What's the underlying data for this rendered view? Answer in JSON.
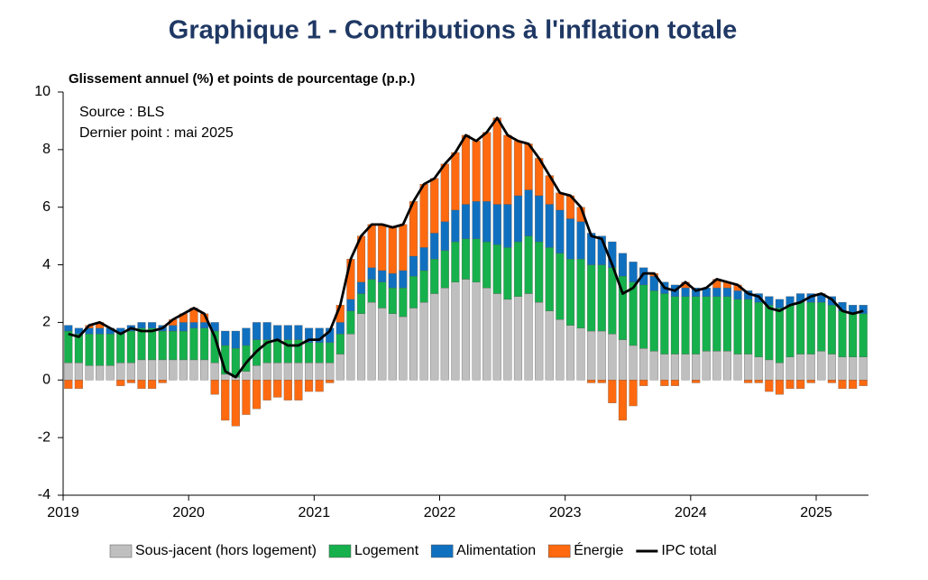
{
  "chart_data": {
    "type": "stacked-bar",
    "title": "Graphique 1 - Contributions à l'inflation totale",
    "subtitle": "Glissement annuel (%) et points de pourcentage (p.p.)",
    "annotations": [
      "Source : BLS",
      "Dernier point : mai 2025"
    ],
    "categories": [
      "2019",
      null,
      null,
      null,
      null,
      null,
      null,
      null,
      null,
      null,
      null,
      null,
      "2020",
      null,
      null,
      null,
      null,
      null,
      null,
      null,
      null,
      null,
      null,
      null,
      "2021",
      null,
      null,
      null,
      null,
      null,
      null,
      null,
      null,
      null,
      null,
      null,
      "2022",
      null,
      null,
      null,
      null,
      null,
      null,
      null,
      null,
      null,
      null,
      null,
      "2023",
      null,
      null,
      null,
      null,
      null,
      null,
      null,
      null,
      null,
      null,
      null,
      "2024",
      null,
      null,
      null,
      null,
      null,
      null,
      null,
      null,
      null,
      null,
      null,
      "2025",
      null,
      null,
      null,
      null
    ],
    "ylim": [
      -4,
      10
    ],
    "yticks": [
      -4,
      -2,
      0,
      2,
      4,
      6,
      8,
      10
    ],
    "series": [
      {
        "name": "Sous-jacent (hors logement)",
        "color": "#bfbfbf",
        "values": [
          0.6,
          0.6,
          0.5,
          0.5,
          0.5,
          0.6,
          0.6,
          0.7,
          0.7,
          0.7,
          0.7,
          0.7,
          0.7,
          0.7,
          0.6,
          0.2,
          0.1,
          0.3,
          0.5,
          0.6,
          0.6,
          0.6,
          0.6,
          0.6,
          0.6,
          0.6,
          0.9,
          1.6,
          2.3,
          2.7,
          2.5,
          2.3,
          2.2,
          2.5,
          2.7,
          3.0,
          3.2,
          3.4,
          3.5,
          3.4,
          3.2,
          3.0,
          2.8,
          2.9,
          3.0,
          2.7,
          2.4,
          2.1,
          1.9,
          1.8,
          1.7,
          1.7,
          1.6,
          1.4,
          1.2,
          1.1,
          1.0,
          0.9,
          0.9,
          0.9,
          0.9,
          1.0,
          1.0,
          1.0,
          0.9,
          0.9,
          0.8,
          0.7,
          0.6,
          0.8,
          0.9,
          0.9,
          1.0,
          0.9,
          0.8,
          0.8,
          0.8
        ]
      },
      {
        "name": "Logement",
        "color": "#16b04c",
        "values": [
          1.1,
          1.0,
          1.1,
          1.1,
          1.1,
          1.0,
          1.1,
          1.1,
          1.1,
          1.0,
          1.0,
          1.0,
          1.1,
          1.1,
          1.1,
          1.0,
          1.0,
          0.9,
          0.9,
          0.8,
          0.8,
          0.8,
          0.8,
          0.7,
          0.7,
          0.7,
          0.7,
          0.8,
          0.7,
          0.8,
          0.9,
          0.9,
          1.0,
          1.1,
          1.1,
          1.2,
          1.3,
          1.4,
          1.4,
          1.5,
          1.6,
          1.7,
          1.8,
          1.9,
          2.0,
          2.1,
          2.2,
          2.3,
          2.3,
          2.4,
          2.3,
          2.3,
          2.3,
          2.2,
          2.2,
          2.2,
          2.1,
          2.1,
          2.0,
          2.0,
          2.0,
          1.9,
          1.9,
          1.9,
          1.9,
          1.9,
          1.9,
          1.9,
          1.9,
          1.8,
          1.8,
          1.8,
          1.7,
          1.7,
          1.6,
          1.5,
          1.5
        ]
      },
      {
        "name": "Alimentation",
        "color": "#1070c0",
        "values": [
          0.2,
          0.2,
          0.2,
          0.2,
          0.2,
          0.2,
          0.2,
          0.2,
          0.2,
          0.2,
          0.2,
          0.3,
          0.2,
          0.2,
          0.3,
          0.5,
          0.6,
          0.6,
          0.6,
          0.6,
          0.5,
          0.5,
          0.5,
          0.5,
          0.5,
          0.5,
          0.4,
          0.4,
          0.4,
          0.4,
          0.4,
          0.5,
          0.6,
          0.7,
          0.8,
          0.9,
          1.0,
          1.1,
          1.2,
          1.3,
          1.4,
          1.4,
          1.5,
          1.6,
          1.6,
          1.6,
          1.5,
          1.5,
          1.4,
          1.3,
          1.1,
          1.0,
          0.9,
          0.8,
          0.7,
          0.6,
          0.5,
          0.4,
          0.4,
          0.3,
          0.3,
          0.3,
          0.3,
          0.3,
          0.3,
          0.3,
          0.3,
          0.3,
          0.3,
          0.3,
          0.3,
          0.3,
          0.3,
          0.3,
          0.3,
          0.3,
          0.3
        ]
      },
      {
        "name": "Énergie",
        "color": "#ff6a10",
        "values": [
          -0.3,
          -0.3,
          0.1,
          0.2,
          0.0,
          -0.2,
          -0.1,
          -0.3,
          -0.3,
          -0.1,
          0.2,
          0.3,
          0.5,
          0.3,
          -0.5,
          -1.4,
          -1.6,
          -1.2,
          -1.0,
          -0.7,
          -0.6,
          -0.7,
          -0.7,
          -0.4,
          -0.4,
          -0.1,
          0.6,
          1.4,
          1.6,
          1.5,
          1.6,
          1.6,
          1.6,
          1.9,
          2.2,
          1.9,
          2.0,
          2.0,
          2.4,
          2.1,
          2.4,
          3.0,
          2.4,
          1.9,
          1.6,
          1.3,
          1.0,
          0.6,
          0.8,
          0.5,
          -0.1,
          -0.1,
          -0.8,
          -1.4,
          -0.9,
          -0.2,
          0.1,
          -0.2,
          -0.2,
          0.2,
          -0.1,
          0.0,
          0.3,
          0.2,
          0.2,
          -0.1,
          -0.1,
          -0.4,
          -0.5,
          -0.3,
          -0.3,
          -0.1,
          0.0,
          -0.1,
          -0.3,
          -0.3,
          -0.2
        ]
      }
    ],
    "line": {
      "name": "IPC total",
      "color": "#000000",
      "values": [
        1.6,
        1.5,
        1.9,
        2.0,
        1.8,
        1.6,
        1.8,
        1.7,
        1.7,
        1.8,
        2.1,
        2.3,
        2.5,
        2.3,
        1.5,
        0.3,
        0.1,
        0.6,
        1.0,
        1.3,
        1.4,
        1.2,
        1.2,
        1.4,
        1.4,
        1.7,
        2.6,
        4.2,
        5.0,
        5.4,
        5.4,
        5.3,
        5.4,
        6.2,
        6.8,
        7.0,
        7.5,
        7.9,
        8.5,
        8.3,
        8.6,
        9.1,
        8.5,
        8.3,
        8.2,
        7.7,
        7.1,
        6.5,
        6.4,
        6.0,
        5.0,
        4.9,
        4.0,
        3.0,
        3.2,
        3.7,
        3.7,
        3.2,
        3.1,
        3.4,
        3.1,
        3.2,
        3.5,
        3.4,
        3.3,
        3.0,
        2.9,
        2.5,
        2.4,
        2.6,
        2.7,
        2.9,
        3.0,
        2.8,
        2.4,
        2.3,
        2.4
      ]
    }
  }
}
